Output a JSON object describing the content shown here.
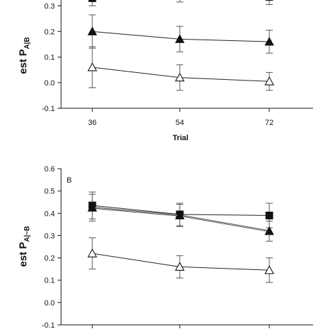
{
  "chart_data": [
    {
      "type": "line",
      "panel_label": "",
      "x": [
        36,
        54,
        72
      ],
      "xlabel": "Trial",
      "ylabel_main": "est",
      "ylabel_sub": "P",
      "ylabel_subscript": "A|B",
      "ylim": [
        -0.1,
        0.35
      ],
      "yticks": [
        -0.1,
        0.0,
        0.1,
        0.2,
        0.3
      ],
      "ytick_labels": [
        "-0.1",
        "0.0",
        "0.1",
        "0.2",
        "0.3"
      ],
      "xtick_labels": [
        "36",
        "54",
        "72"
      ],
      "grid": false,
      "series": [
        {
          "marker": "filled-square",
          "values": [
            0.33,
            0.345,
            0.335
          ],
          "err": [
            0.03,
            0.03,
            0.03
          ]
        },
        {
          "marker": "filled-triangle",
          "values": [
            0.2,
            0.17,
            0.16
          ],
          "err": [
            0.065,
            0.05,
            0.045
          ]
        },
        {
          "marker": "open-triangle",
          "values": [
            0.06,
            0.02,
            0.005
          ],
          "err": [
            0.08,
            0.05,
            0.035
          ]
        }
      ]
    },
    {
      "type": "line",
      "panel_label": "B",
      "x": [
        36,
        54,
        72
      ],
      "xlabel": "",
      "ylabel_main": "est",
      "ylabel_sub": "P",
      "ylabel_subscript": "A|~B",
      "ylim": [
        -0.1,
        0.6
      ],
      "yticks": [
        -0.1,
        0.0,
        0.1,
        0.2,
        0.3,
        0.4,
        0.5,
        0.6
      ],
      "ytick_labels": [
        "-0.1",
        "0.0",
        "0.1",
        "0.2",
        "0.3",
        "0.4",
        "0.5",
        "0.6"
      ],
      "xtick_labels": [],
      "grid": false,
      "series": [
        {
          "marker": "filled-square",
          "values": [
            0.435,
            0.395,
            0.39
          ],
          "err": [
            0.06,
            0.05,
            0.055
          ]
        },
        {
          "marker": "filled-triangle",
          "values": [
            0.425,
            0.39,
            0.32
          ],
          "err": [
            0.06,
            0.05,
            0.045
          ]
        },
        {
          "marker": "open-triangle",
          "values": [
            0.22,
            0.16,
            0.145
          ],
          "err": [
            0.07,
            0.05,
            0.055
          ]
        }
      ]
    }
  ]
}
